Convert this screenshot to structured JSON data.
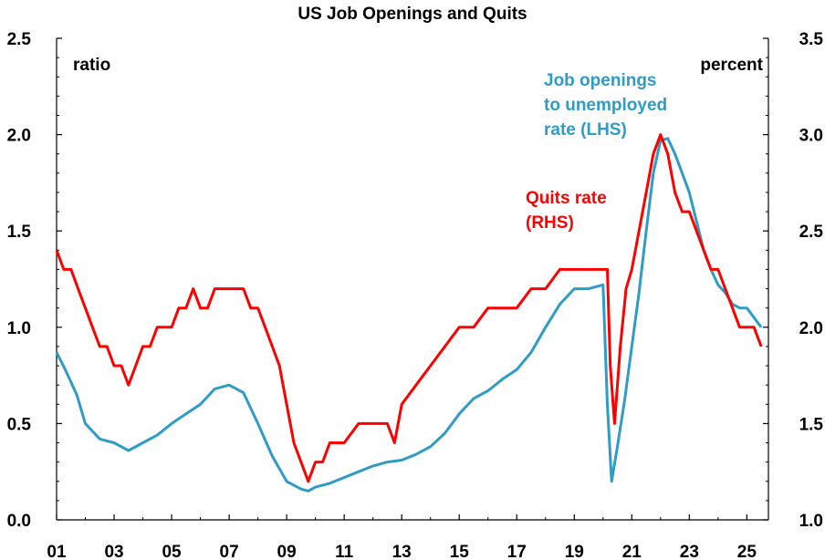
{
  "chart_data": {
    "type": "line",
    "title": "US Job Openings and Quits",
    "left_unit": "ratio",
    "right_unit": "percent",
    "x_ticks": [
      "01",
      "03",
      "05",
      "07",
      "09",
      "11",
      "13",
      "15",
      "17",
      "19",
      "21",
      "23",
      "25"
    ],
    "x_tick_years": [
      2001,
      2003,
      2005,
      2007,
      2009,
      2011,
      2013,
      2015,
      2017,
      2019,
      2021,
      2023,
      2025
    ],
    "xlim": [
      2001.0,
      2025.75
    ],
    "ylim_left": [
      0.0,
      2.5
    ],
    "ylim_right": [
      1.0,
      3.5
    ],
    "y_ticks_left": [
      "0.0",
      "0.5",
      "1.0",
      "1.5",
      "2.0",
      "2.5"
    ],
    "y_ticks_right": [
      "1.0",
      "1.5",
      "2.0",
      "2.5",
      "3.0",
      "3.5"
    ],
    "grid": false,
    "colors": {
      "openings": "#2f9cc6",
      "quits": "#ff0000"
    },
    "annotations": {
      "openings": [
        "Job openings",
        "to unemployed",
        "rate (LHS)"
      ],
      "quits": [
        "Quits rate",
        "(RHS)"
      ]
    },
    "series": [
      {
        "axis": "left",
        "x": [
          2001.0,
          2001.3,
          2001.7,
          2002.0,
          2002.5,
          2003.0,
          2003.5,
          2004.0,
          2004.5,
          2005.0,
          2005.5,
          2006.0,
          2006.5,
          2007.0,
          2007.5,
          2008.0,
          2008.5,
          2009.0,
          2009.5,
          2009.75,
          2010.0,
          2010.5,
          2011.0,
          2011.5,
          2012.0,
          2012.5,
          2013.0,
          2013.5,
          2014.0,
          2014.5,
          2015.0,
          2015.5,
          2016.0,
          2016.5,
          2017.0,
          2017.5,
          2018.0,
          2018.5,
          2019.0,
          2019.5,
          2020.0,
          2020.15,
          2020.3,
          2020.5,
          2020.75,
          2021.0,
          2021.25,
          2021.5,
          2021.75,
          2022.0,
          2022.25,
          2022.5,
          2022.75,
          2023.0,
          2023.25,
          2023.5,
          2023.75,
          2024.0,
          2024.25,
          2024.5,
          2024.75,
          2025.0,
          2025.25,
          2025.5
        ],
        "y": [
          0.87,
          0.78,
          0.65,
          0.5,
          0.42,
          0.4,
          0.36,
          0.4,
          0.44,
          0.5,
          0.55,
          0.6,
          0.68,
          0.7,
          0.66,
          0.5,
          0.33,
          0.2,
          0.16,
          0.15,
          0.17,
          0.19,
          0.22,
          0.25,
          0.28,
          0.3,
          0.31,
          0.34,
          0.38,
          0.45,
          0.55,
          0.63,
          0.67,
          0.73,
          0.78,
          0.87,
          1.0,
          1.12,
          1.2,
          1.2,
          1.22,
          0.6,
          0.2,
          0.38,
          0.62,
          0.9,
          1.18,
          1.5,
          1.8,
          1.97,
          1.98,
          1.9,
          1.8,
          1.7,
          1.55,
          1.4,
          1.3,
          1.22,
          1.18,
          1.12,
          1.1,
          1.1,
          1.05,
          1.0
        ]
      },
      {
        "axis": "right",
        "x": [
          2001.0,
          2001.25,
          2001.5,
          2001.75,
          2002.0,
          2002.25,
          2002.5,
          2002.75,
          2003.0,
          2003.25,
          2003.5,
          2003.75,
          2004.0,
          2004.25,
          2004.5,
          2004.75,
          2005.0,
          2005.25,
          2005.5,
          2005.75,
          2006.0,
          2006.25,
          2006.5,
          2006.75,
          2007.0,
          2007.25,
          2007.5,
          2007.75,
          2008.0,
          2008.25,
          2008.5,
          2008.75,
          2009.0,
          2009.25,
          2009.5,
          2009.75,
          2010.0,
          2010.25,
          2010.5,
          2010.75,
          2011.0,
          2011.5,
          2012.0,
          2012.5,
          2012.75,
          2013.0,
          2013.5,
          2014.0,
          2014.5,
          2015.0,
          2015.5,
          2016.0,
          2016.5,
          2017.0,
          2017.5,
          2018.0,
          2018.5,
          2019.0,
          2019.25,
          2019.5,
          2019.75,
          2020.0,
          2020.15,
          2020.25,
          2020.4,
          2020.6,
          2020.8,
          2021.0,
          2021.25,
          2021.5,
          2021.75,
          2022.0,
          2022.25,
          2022.5,
          2022.75,
          2023.0,
          2023.25,
          2023.5,
          2023.75,
          2024.0,
          2024.25,
          2024.5,
          2024.75,
          2025.0,
          2025.25,
          2025.5
        ],
        "y": [
          2.4,
          2.3,
          2.3,
          2.2,
          2.1,
          2.0,
          1.9,
          1.9,
          1.8,
          1.8,
          1.7,
          1.8,
          1.9,
          1.9,
          2.0,
          2.0,
          2.0,
          2.1,
          2.1,
          2.2,
          2.1,
          2.1,
          2.2,
          2.2,
          2.2,
          2.2,
          2.2,
          2.1,
          2.1,
          2.0,
          1.9,
          1.8,
          1.6,
          1.4,
          1.3,
          1.2,
          1.3,
          1.3,
          1.4,
          1.4,
          1.4,
          1.5,
          1.5,
          1.5,
          1.4,
          1.6,
          1.7,
          1.8,
          1.9,
          2.0,
          2.0,
          2.1,
          2.1,
          2.1,
          2.2,
          2.2,
          2.3,
          2.3,
          2.3,
          2.3,
          2.3,
          2.3,
          2.3,
          1.8,
          1.5,
          1.9,
          2.2,
          2.3,
          2.5,
          2.7,
          2.9,
          3.0,
          2.9,
          2.7,
          2.6,
          2.6,
          2.5,
          2.4,
          2.3,
          2.3,
          2.2,
          2.1,
          2.0,
          2.0,
          2.0,
          1.9
        ]
      }
    ]
  }
}
